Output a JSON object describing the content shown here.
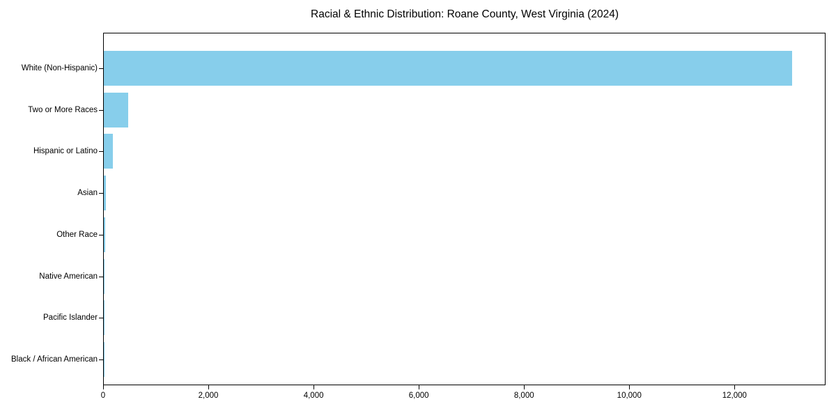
{
  "chart_data": {
    "type": "bar",
    "orientation": "horizontal",
    "title": "Racial & Ethnic Distribution: Roane County, West Virginia (2024)",
    "categories": [
      "White (Non-Hispanic)",
      "Two or More Races",
      "Hispanic or Latino",
      "Asian",
      "Other Race",
      "Native American",
      "Pacific Islander",
      "Black / African American"
    ],
    "values": [
      13080,
      470,
      170,
      45,
      20,
      10,
      4,
      2
    ],
    "xlabel": "",
    "ylabel": "",
    "xlim": [
      0,
      13730
    ],
    "xticks": [
      0,
      2000,
      4000,
      6000,
      8000,
      10000,
      12000
    ],
    "xtick_labels": [
      "0",
      "2,000",
      "4,000",
      "6,000",
      "8,000",
      "10,000",
      "12,000"
    ],
    "bar_color": "#87CEEB",
    "spine_color": "#000000",
    "text_color": "#000000",
    "background_color": "#ffffff",
    "grid": false,
    "legend": null
  }
}
